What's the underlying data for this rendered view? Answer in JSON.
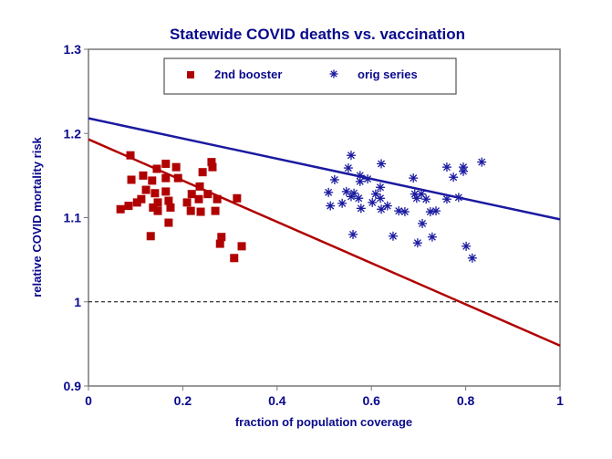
{
  "chart_data": {
    "type": "scatter",
    "title": "Statewide COVID deaths vs. vaccination",
    "xlabel": "fraction of population coverage",
    "ylabel": "relative COVID mortality risk",
    "xlim": [
      0,
      1
    ],
    "ylim": [
      0.9,
      1.3
    ],
    "x_ticks": [
      "0",
      "0.2",
      "0.4",
      "0.6",
      "0.8",
      "1"
    ],
    "x_tick_values": [
      0,
      0.2,
      0.4,
      0.6,
      0.8,
      1
    ],
    "y_ticks": [
      "0.9",
      "1",
      "1.1",
      "1.2",
      "1.3"
    ],
    "y_tick_values": [
      0.9,
      1.0,
      1.1,
      1.2,
      1.3
    ],
    "grid": false,
    "legend_position": "top-center",
    "reference_line": {
      "y": 1.0,
      "style": "dashed",
      "color": "#000000"
    },
    "series": [
      {
        "name": "2nd booster",
        "marker": "square",
        "color": "#b00000",
        "trendline": {
          "x": [
            0,
            1
          ],
          "y": [
            1.193,
            0.948
          ]
        },
        "points": [
          [
            0.089,
            1.174
          ],
          [
            0.164,
            1.164
          ],
          [
            0.186,
            1.16
          ],
          [
            0.145,
            1.158
          ],
          [
            0.261,
            1.166
          ],
          [
            0.263,
            1.16
          ],
          [
            0.242,
            1.154
          ],
          [
            0.116,
            1.15
          ],
          [
            0.091,
            1.145
          ],
          [
            0.164,
            1.147
          ],
          [
            0.19,
            1.147
          ],
          [
            0.135,
            1.144
          ],
          [
            0.236,
            1.137
          ],
          [
            0.122,
            1.133
          ],
          [
            0.141,
            1.129
          ],
          [
            0.164,
            1.131
          ],
          [
            0.219,
            1.128
          ],
          [
            0.253,
            1.128
          ],
          [
            0.315,
            1.123
          ],
          [
            0.273,
            1.122
          ],
          [
            0.234,
            1.122
          ],
          [
            0.112,
            1.122
          ],
          [
            0.103,
            1.118
          ],
          [
            0.147,
            1.118
          ],
          [
            0.17,
            1.12
          ],
          [
            0.209,
            1.118
          ],
          [
            0.085,
            1.114
          ],
          [
            0.068,
            1.11
          ],
          [
            0.137,
            1.112
          ],
          [
            0.174,
            1.112
          ],
          [
            0.147,
            1.108
          ],
          [
            0.217,
            1.108
          ],
          [
            0.238,
            1.107
          ],
          [
            0.269,
            1.108
          ],
          [
            0.17,
            1.094
          ],
          [
            0.132,
            1.078
          ],
          [
            0.282,
            1.077
          ],
          [
            0.279,
            1.069
          ],
          [
            0.325,
            1.066
          ],
          [
            0.309,
            1.052
          ]
        ]
      },
      {
        "name": "orig series",
        "marker": "asterisk",
        "color": "#1a1aa0",
        "trendline": {
          "x": [
            0,
            1
          ],
          "y": [
            1.218,
            1.098
          ]
        },
        "points": [
          [
            0.557,
            1.174
          ],
          [
            0.621,
            1.164
          ],
          [
            0.551,
            1.159
          ],
          [
            0.576,
            1.15
          ],
          [
            0.592,
            1.146
          ],
          [
            0.522,
            1.145
          ],
          [
            0.689,
            1.147
          ],
          [
            0.576,
            1.143
          ],
          [
            0.619,
            1.136
          ],
          [
            0.547,
            1.131
          ],
          [
            0.509,
            1.13
          ],
          [
            0.563,
            1.129
          ],
          [
            0.609,
            1.128
          ],
          [
            0.692,
            1.128
          ],
          [
            0.706,
            1.128
          ],
          [
            0.557,
            1.125
          ],
          [
            0.573,
            1.123
          ],
          [
            0.619,
            1.123
          ],
          [
            0.696,
            1.123
          ],
          [
            0.602,
            1.118
          ],
          [
            0.538,
            1.117
          ],
          [
            0.513,
            1.114
          ],
          [
            0.634,
            1.114
          ],
          [
            0.578,
            1.111
          ],
          [
            0.621,
            1.11
          ],
          [
            0.658,
            1.108
          ],
          [
            0.671,
            1.107
          ],
          [
            0.708,
            1.093
          ],
          [
            0.561,
            1.08
          ],
          [
            0.646,
            1.078
          ],
          [
            0.698,
            1.07
          ],
          [
            0.76,
            1.16
          ],
          [
            0.795,
            1.16
          ],
          [
            0.795,
            1.155
          ],
          [
            0.834,
            1.166
          ],
          [
            0.774,
            1.148
          ],
          [
            0.716,
            1.122
          ],
          [
            0.76,
            1.122
          ],
          [
            0.785,
            1.124
          ],
          [
            0.725,
            1.107
          ],
          [
            0.737,
            1.108
          ],
          [
            0.729,
            1.077
          ],
          [
            0.801,
            1.066
          ],
          [
            0.814,
            1.052
          ]
        ]
      }
    ]
  }
}
